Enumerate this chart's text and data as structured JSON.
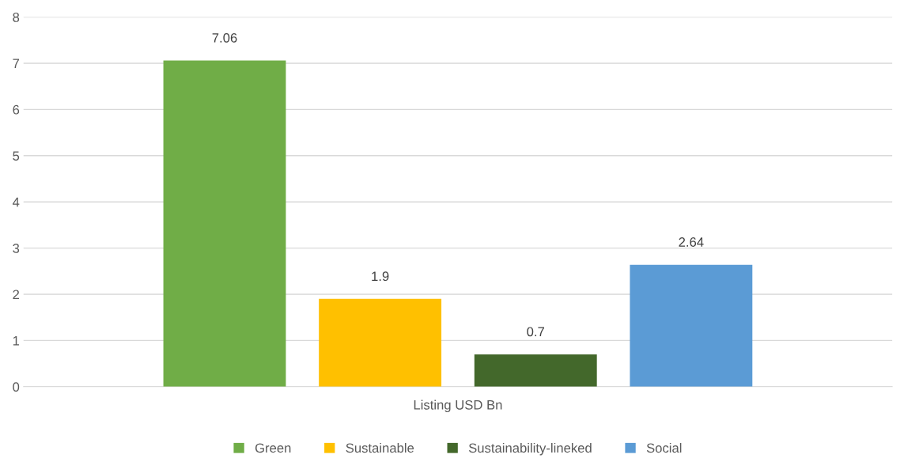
{
  "chart_data": {
    "type": "bar",
    "categories": [
      "Listing USD Bn"
    ],
    "series": [
      {
        "name": "Green",
        "color": "#70ad47",
        "values": [
          7.06
        ]
      },
      {
        "name": "Sustainable",
        "color": "#ffc000",
        "values": [
          1.9
        ]
      },
      {
        "name": "Sustainability-lineked",
        "color": "#43682b",
        "values": [
          0.7
        ]
      },
      {
        "name": "Social",
        "color": "#5b9bd5",
        "values": [
          2.64
        ]
      }
    ],
    "ylim": [
      0,
      8
    ],
    "yticks": [
      0,
      1,
      2,
      3,
      4,
      5,
      6,
      7,
      8
    ],
    "grid": "y",
    "legend": "bottom",
    "data_labels": true
  }
}
